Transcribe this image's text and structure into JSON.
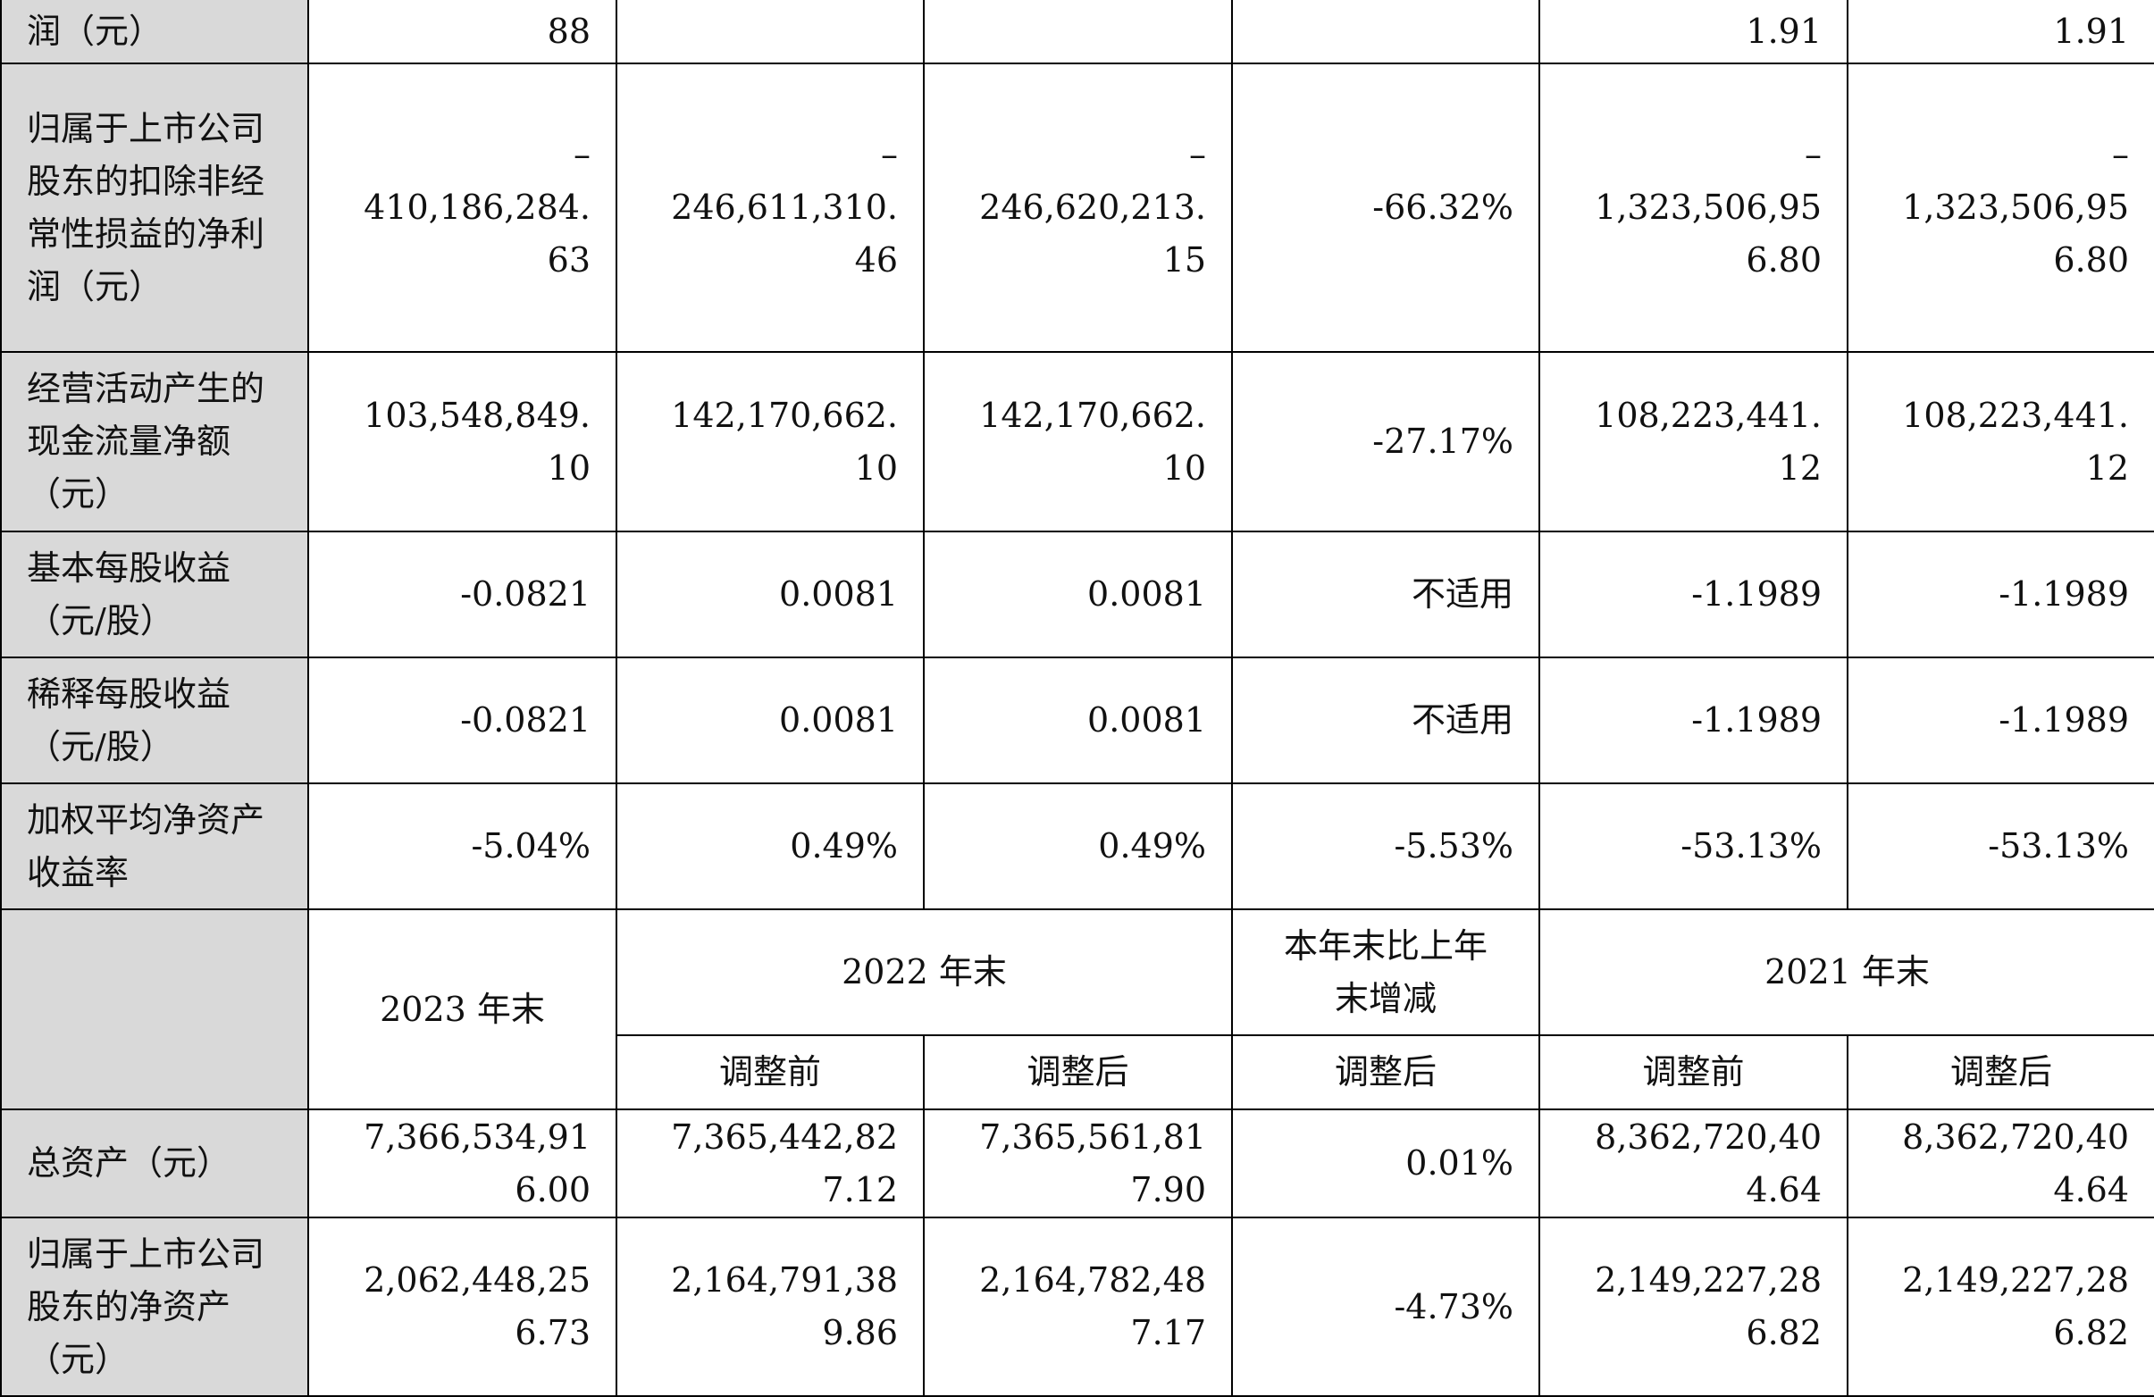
{
  "rows": [
    {
      "label": "润（元）",
      "c1": "88",
      "c2": "",
      "c3": "",
      "c4": "",
      "c5": "1.91",
      "c6": "1.91"
    },
    {
      "label": "归属于上市公司股东的扣除非经常性损益的净利润（元）",
      "c1": "–\n410,186,284.\n63",
      "c2": "–\n246,611,310.\n46",
      "c3": "–\n246,620,213.\n15",
      "c4": "-66.32%",
      "c5": "–\n1,323,506,95\n6.80",
      "c6": "–\n1,323,506,95\n6.80"
    },
    {
      "label": "经营活动产生的现金流量净额（元）",
      "c1": "103,548,849.\n10",
      "c2": "142,170,662.\n10",
      "c3": "142,170,662.\n10",
      "c4": "-27.17%",
      "c5": "108,223,441.\n12",
      "c6": "108,223,441.\n12"
    },
    {
      "label": "基本每股收益（元/股）",
      "c1": "-0.0821",
      "c2": "0.0081",
      "c3": "0.0081",
      "c4": "不适用",
      "c5": "-1.1989",
      "c6": "-1.1989"
    },
    {
      "label": "稀释每股收益（元/股）",
      "c1": "-0.0821",
      "c2": "0.0081",
      "c3": "0.0081",
      "c4": "不适用",
      "c5": "-1.1989",
      "c6": "-1.1989"
    },
    {
      "label": "加权平均净资产收益率",
      "c1": "-5.04%",
      "c2": "0.49%",
      "c3": "0.49%",
      "c4": "-5.53%",
      "c5": "-53.13%",
      "c6": "-53.13%"
    }
  ],
  "header2": {
    "y2023": "2023 年末",
    "y2022": "2022 年末",
    "change": "本年末比上年\n末增减",
    "y2021": "2021 年末",
    "before_2022": "调整前",
    "after_2022": "调整后",
    "after_change": "调整后",
    "before_2021": "调整前",
    "after_2021": "调整后"
  },
  "rows2": [
    {
      "label": "总资产（元）",
      "c1": "7,366,534,91\n6.00",
      "c2": "7,365,442,82\n7.12",
      "c3": "7,365,561,81\n7.90",
      "c4": "0.01%",
      "c5": "8,362,720,40\n4.64",
      "c6": "8,362,720,40\n4.64"
    },
    {
      "label": "归属于上市公司股东的净资产（元）",
      "c1": "2,062,448,25\n6.73",
      "c2": "2,164,791,38\n9.86",
      "c3": "2,164,782,48\n7.17",
      "c4": "-4.73%",
      "c5": "2,149,227,28\n6.82",
      "c6": "2,149,227,28\n6.82"
    }
  ]
}
